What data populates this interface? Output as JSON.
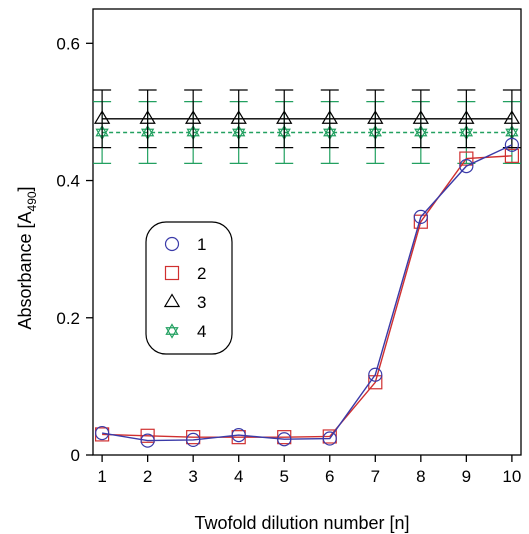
{
  "chart_data": {
    "type": "line",
    "title": "",
    "xlabel": "Twofold dilution number [n]",
    "ylabel_main": "Absorbance [A",
    "ylabel_sub": "490",
    "ylabel_close": "]",
    "xlim": [
      0.8,
      10.2
    ],
    "ylim": [
      0,
      0.65
    ],
    "x_ticks": [
      1,
      2,
      3,
      4,
      5,
      6,
      7,
      8,
      9,
      10
    ],
    "x_tick_labels": [
      "1",
      "2",
      "3",
      "4",
      "5",
      "6",
      "7",
      "8",
      "9",
      "10"
    ],
    "y_ticks": [
      0,
      0.2,
      0.4,
      0.6
    ],
    "y_tick_labels": [
      "0",
      "0.2",
      "0.4",
      "0.6"
    ],
    "grid": false,
    "legend_position": "center-left",
    "x": [
      1,
      2,
      3,
      4,
      5,
      6,
      7,
      8,
      9,
      10
    ],
    "series": [
      {
        "name": "1",
        "marker": "circle",
        "color": "#3a3aa8",
        "line_style": "solid",
        "values": [
          0.032,
          0.021,
          0.022,
          0.029,
          0.023,
          0.024,
          0.117,
          0.347,
          0.421,
          0.452
        ]
      },
      {
        "name": "2",
        "marker": "square",
        "color": "#d03030",
        "line_style": "solid",
        "values": [
          0.03,
          0.028,
          0.026,
          0.026,
          0.026,
          0.027,
          0.106,
          0.34,
          0.432,
          0.436
        ]
      },
      {
        "name": "3",
        "marker": "triangle",
        "color": "#000000",
        "line_style": "solid",
        "values": [
          0.49,
          0.49,
          0.49,
          0.49,
          0.49,
          0.49,
          0.49,
          0.49,
          0.49,
          0.49
        ],
        "error": 0.042
      },
      {
        "name": "4",
        "marker": "star",
        "color": "#22a060",
        "line_style": "dashed",
        "values": [
          0.47,
          0.47,
          0.47,
          0.47,
          0.47,
          0.47,
          0.47,
          0.47,
          0.47,
          0.47
        ],
        "error": 0.045
      }
    ]
  }
}
